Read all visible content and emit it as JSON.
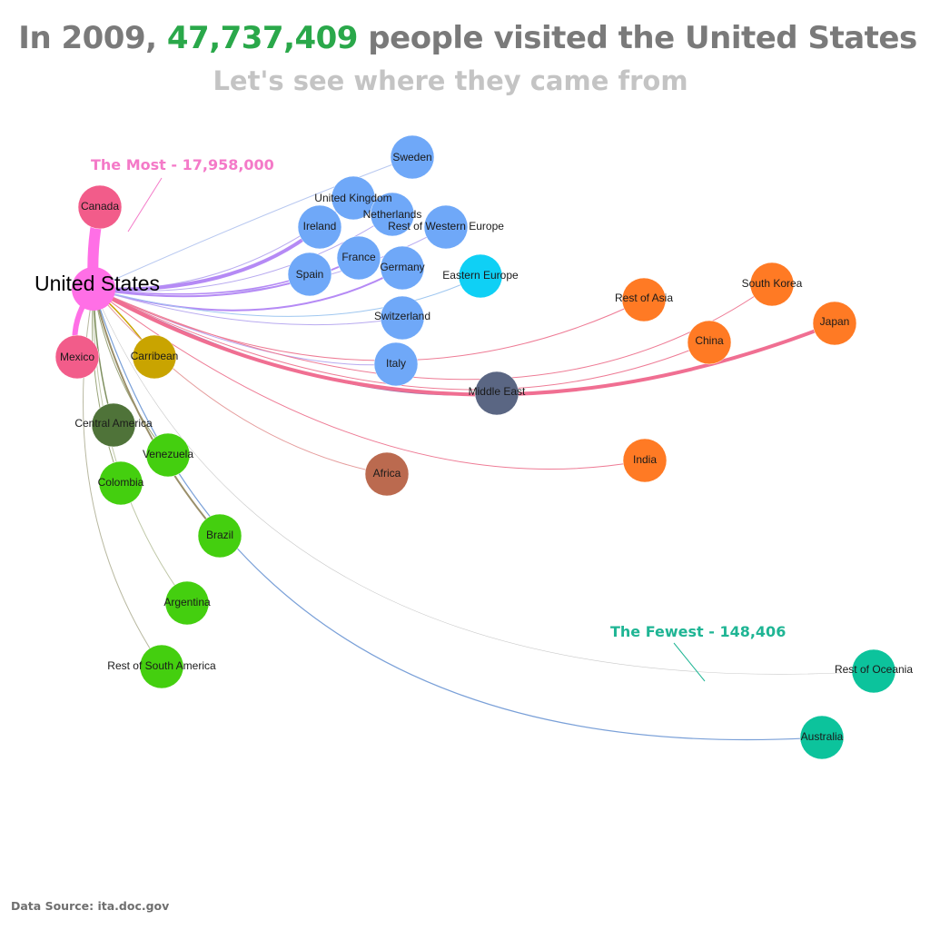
{
  "title": {
    "prefix": "In 2009, ",
    "highlight": "47,737,409",
    "suffix": " people visited the United States"
  },
  "subtitle": "Let's see where they came from",
  "source": "Data Source: ita.doc.gov",
  "annotations": {
    "most": {
      "text": "The Most - 17,958,000",
      "color": "#f47ac8"
    },
    "fewest": {
      "text": "The Fewest - 148,406",
      "color": "#1fb594"
    }
  },
  "hub": {
    "label": "United States",
    "color": "#ff6fe6"
  },
  "nodes": [
    {
      "id": "canada",
      "label": "Canada",
      "color": "#f25c8a"
    },
    {
      "id": "mexico",
      "label": "Mexico",
      "color": "#f25c8a"
    },
    {
      "id": "sweden",
      "label": "Sweden",
      "color": "#6fa8f8"
    },
    {
      "id": "uk",
      "label": "United Kingdom",
      "color": "#6fa8f8"
    },
    {
      "id": "netherlands",
      "label": "Netherlands",
      "color": "#6fa8f8"
    },
    {
      "id": "ireland",
      "label": "Ireland",
      "color": "#6fa8f8"
    },
    {
      "id": "row_europe",
      "label": "Rest of Western Europe",
      "color": "#6fa8f8"
    },
    {
      "id": "france",
      "label": "France",
      "color": "#6fa8f8"
    },
    {
      "id": "germany",
      "label": "Germany",
      "color": "#6fa8f8"
    },
    {
      "id": "spain",
      "label": "Spain",
      "color": "#6fa8f8"
    },
    {
      "id": "eastern_europe",
      "label": "Eastern Europe",
      "color": "#0fd0f5"
    },
    {
      "id": "switzerland",
      "label": "Switzerland",
      "color": "#6fa8f8"
    },
    {
      "id": "italy",
      "label": "Italy",
      "color": "#6fa8f8"
    },
    {
      "id": "caribbean",
      "label": "Carribean",
      "color": "#c9a400"
    },
    {
      "id": "middle_east",
      "label": "Middle East",
      "color": "#5a6683"
    },
    {
      "id": "rest_asia",
      "label": "Rest of Asia",
      "color": "#ff7a24"
    },
    {
      "id": "south_korea",
      "label": "South Korea",
      "color": "#ff7a24"
    },
    {
      "id": "china",
      "label": "China",
      "color": "#ff7a24"
    },
    {
      "id": "japan",
      "label": "Japan",
      "color": "#ff7a24"
    },
    {
      "id": "india",
      "label": "India",
      "color": "#ff7a24"
    },
    {
      "id": "africa",
      "label": "Africa",
      "color": "#bb6a4f"
    },
    {
      "id": "central_america",
      "label": "Central America",
      "color": "#4f7339"
    },
    {
      "id": "venezuela",
      "label": "Venezuela",
      "color": "#44cf0f"
    },
    {
      "id": "colombia",
      "label": "Colombia",
      "color": "#44cf0f"
    },
    {
      "id": "brazil",
      "label": "Brazil",
      "color": "#44cf0f"
    },
    {
      "id": "argentina",
      "label": "Argentina",
      "color": "#44cf0f"
    },
    {
      "id": "rest_south_america",
      "label": "Rest of South America",
      "color": "#44cf0f"
    },
    {
      "id": "rest_oceania",
      "label": "Rest of Oceania",
      "color": "#0cc39c"
    },
    {
      "id": "australia",
      "label": "Australia",
      "color": "#0cc39c"
    }
  ]
}
